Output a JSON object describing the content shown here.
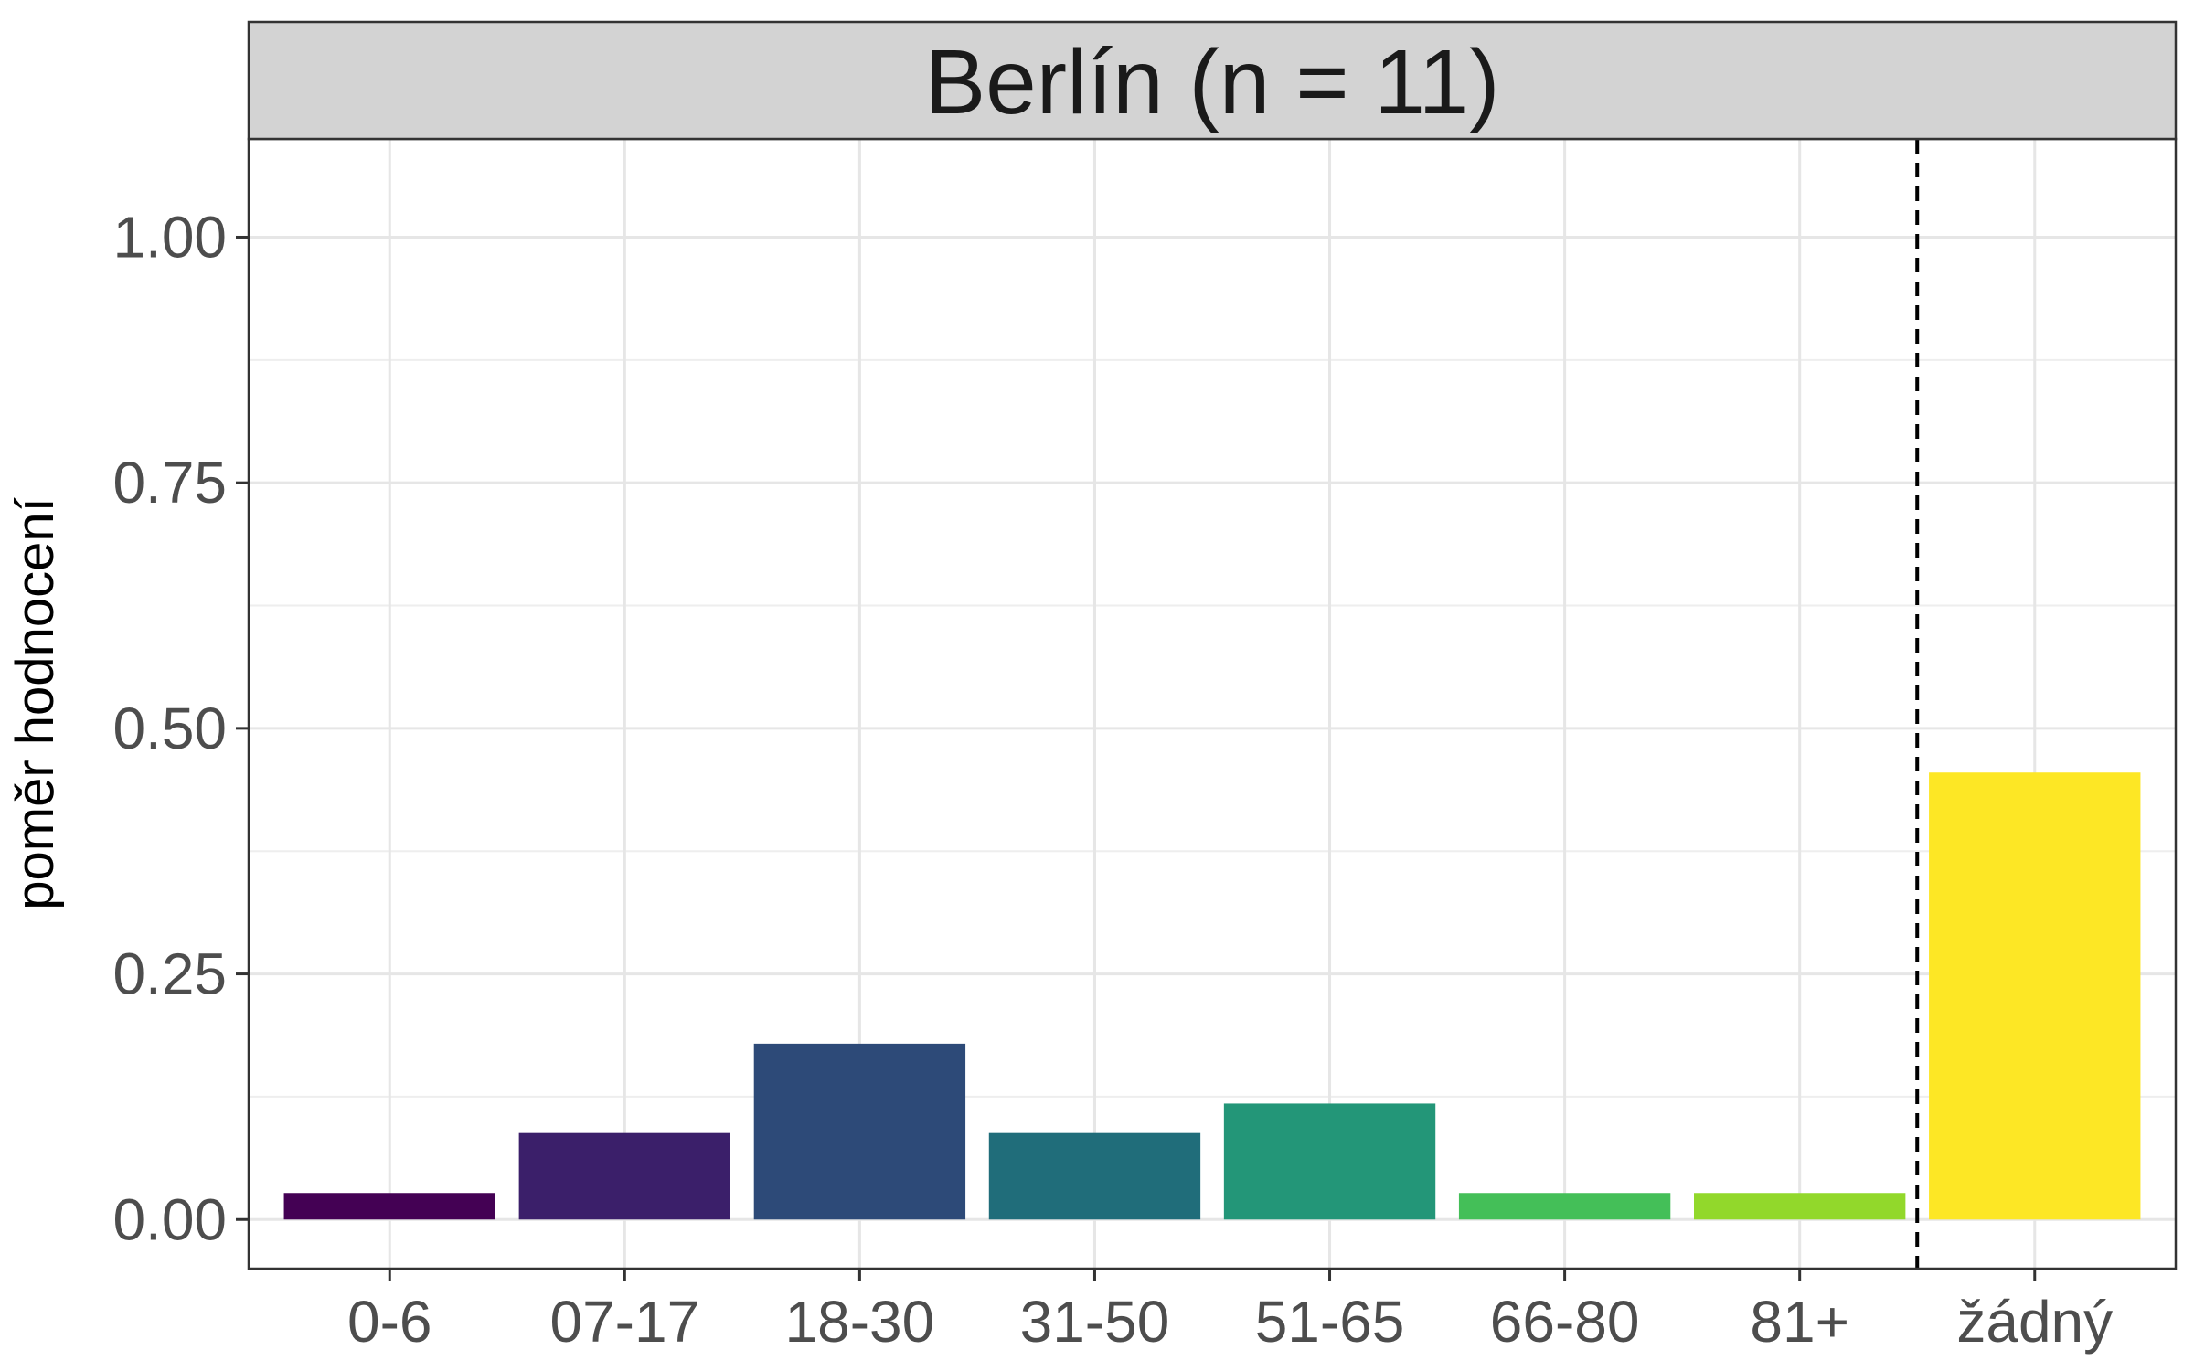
{
  "chart_data": {
    "type": "bar",
    "title": "Berlín (n = 11)",
    "xlabel": "",
    "ylabel": "poměr hodnocení",
    "ylim": [
      -0.05,
      1.1
    ],
    "yticks": [
      0.0,
      0.25,
      0.5,
      0.75,
      1.0
    ],
    "ytick_labels": [
      "0.00",
      "0.25",
      "0.50",
      "0.75",
      "1.00"
    ],
    "categories": [
      "0-6",
      "07-17",
      "18-30",
      "31-50",
      "51-65",
      "66-80",
      "81+",
      "žádný"
    ],
    "values": [
      0.027,
      0.088,
      0.179,
      0.088,
      0.118,
      0.027,
      0.027,
      0.455
    ],
    "colors": [
      "#440154",
      "#3B1F6A",
      "#2D4A78",
      "#206D7A",
      "#239678",
      "#44BF58",
      "#92D82B",
      "#FDE725"
    ],
    "reference_line": {
      "between_categories": [
        "81+",
        "žádný"
      ],
      "style": "dashed"
    },
    "grid": true,
    "legend": "none"
  }
}
